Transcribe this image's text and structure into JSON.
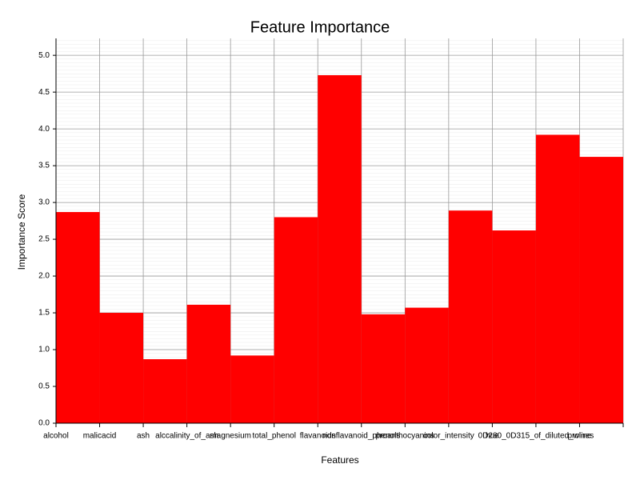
{
  "chart_data": {
    "type": "bar",
    "title": "Feature Importance",
    "x_label": "Features",
    "y_label": "Importance Score",
    "categories": [
      "alcohol",
      "malicacid",
      "ash",
      "alccalinity_of_ash",
      "magnesium",
      "total_phenol",
      "flavanoids",
      "nonflavanoid_phenols",
      "proanthocyanins",
      "color_intensity",
      "hue",
      "0D280_0D315_of_diluted_wines",
      "proline"
    ],
    "values": [
      2.87,
      1.5,
      0.87,
      1.61,
      0.92,
      2.8,
      4.73,
      1.48,
      1.57,
      2.89,
      2.62,
      3.92,
      3.62
    ],
    "color": "#ff0000",
    "ylim": [
      0,
      5.23
    ],
    "yticks": [
      {
        "value": 0,
        "label": "0.0"
      },
      0.5,
      {
        "value": 1,
        "label": "1.0"
      },
      1.5,
      {
        "value": 2,
        "label": "2.0"
      },
      2.5,
      {
        "value": 3,
        "label": "3.0"
      },
      3.5,
      {
        "value": 4,
        "label": "4.0"
      },
      4.5,
      {
        "value": 5,
        "label": "5.0"
      }
    ],
    "grid": true
  }
}
